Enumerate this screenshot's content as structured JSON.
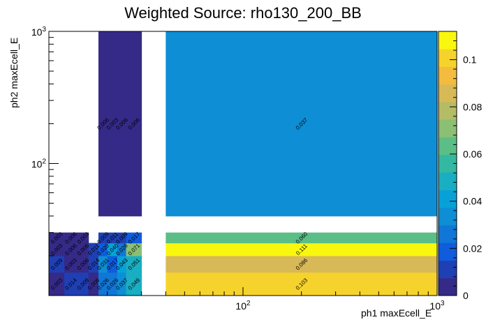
{
  "title": "Weighted Source: rho130_200_BB",
  "chart_data": {
    "type": "heatmap",
    "title": "Weighted Source: rho130_200_BB",
    "xlabel": "ph1 maxEcell_E",
    "ylabel": "ph2 maxEcell_E",
    "xscale": "log",
    "yscale": "log",
    "xlim": [
      10,
      1000
    ],
    "ylim": [
      10,
      1000
    ],
    "x_edges": [
      10,
      12,
      14,
      16,
      18,
      20,
      22.5,
      25,
      30,
      40,
      1000
    ],
    "y_edges": [
      10,
      15,
      20,
      25,
      30,
      40,
      1000
    ],
    "x_tick_labels": [
      "10^2",
      "10^3"
    ],
    "y_tick_labels": [
      "10^2",
      "10^3"
    ],
    "z_range": [
      0,
      0.112
    ],
    "z_ticks": [
      "0",
      "0.02",
      "0.04",
      "0.06",
      "0.08",
      "0.1"
    ],
    "cells": [
      {
        "x": 0,
        "y": 0,
        "value": 0.003
      },
      {
        "x": 1,
        "y": 0,
        "value": 0.014
      },
      {
        "x": 2,
        "y": 0,
        "value": 0.009
      },
      {
        "x": 3,
        "y": 0,
        "value": 0.006
      },
      {
        "x": 4,
        "y": 0,
        "value": 0.026
      },
      {
        "x": 5,
        "y": 0,
        "value": 0.026
      },
      {
        "x": 6,
        "y": 0,
        "value": 0.037
      },
      {
        "x": 7,
        "y": 0,
        "value": 0.049
      },
      {
        "x": 9,
        "y": 0,
        "value": 0.103
      },
      {
        "x": 0,
        "y": 1,
        "value": 0.009
      },
      {
        "x": 1,
        "y": 1,
        "value": 0.003
      },
      {
        "x": 2,
        "y": 1,
        "value": 0.006
      },
      {
        "x": 3,
        "y": 1,
        "value": 0.014
      },
      {
        "x": 4,
        "y": 1,
        "value": 0.031
      },
      {
        "x": 5,
        "y": 1,
        "value": 0.017
      },
      {
        "x": 6,
        "y": 1,
        "value": 0.043
      },
      {
        "x": 7,
        "y": 1,
        "value": 0.051
      },
      {
        "x": 9,
        "y": 1,
        "value": 0.086
      },
      {
        "x": 0,
        "y": 2,
        "value": 0.003
      },
      {
        "x": 1,
        "y": 2,
        "value": 0.006
      },
      {
        "x": 2,
        "y": 2,
        "value": 0.006
      },
      {
        "x": 3,
        "y": 2,
        "value": 0.011
      },
      {
        "x": 4,
        "y": 2,
        "value": 0.02
      },
      {
        "x": 5,
        "y": 2,
        "value": 0.04
      },
      {
        "x": 6,
        "y": 2,
        "value": 0.026
      },
      {
        "x": 7,
        "y": 2,
        "value": 0.071
      },
      {
        "x": 9,
        "y": 2,
        "value": 0.111
      },
      {
        "x": 0,
        "y": 3,
        "value": 0.003
      },
      {
        "x": 1,
        "y": 3,
        "value": 0.006
      },
      {
        "x": 2,
        "y": 3,
        "value": 0.003
      },
      {
        "x": 4,
        "y": 3,
        "value": 0.009
      },
      {
        "x": 5,
        "y": 3,
        "value": 0.011
      },
      {
        "x": 6,
        "y": 3,
        "value": 0.009
      },
      {
        "x": 7,
        "y": 3,
        "value": 0.017
      },
      {
        "x": 9,
        "y": 3,
        "value": 0.06
      },
      {
        "x": 4,
        "y": 5,
        "value": 0.006
      },
      {
        "x": 5,
        "y": 5,
        "value": 0.003
      },
      {
        "x": 6,
        "y": 5,
        "value": 0.006
      },
      {
        "x": 7,
        "y": 5,
        "value": 0.006
      },
      {
        "x": 9,
        "y": 5,
        "value": 0.037
      }
    ],
    "grid": false,
    "colorbar": "right"
  }
}
